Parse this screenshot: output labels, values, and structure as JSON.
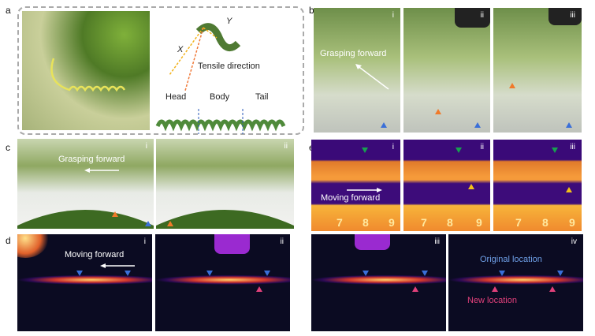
{
  "panels": {
    "a": {
      "label": "a",
      "axis_x": "X",
      "axis_y": "Y",
      "tensile": "Tensile direction",
      "head": "Head",
      "body": "Body",
      "tail": "Tail"
    },
    "b": {
      "label": "b",
      "subs": [
        "i",
        "ii",
        "iii"
      ],
      "annotation": "Grasping forward"
    },
    "c": {
      "label": "c",
      "subs": [
        "i",
        "ii"
      ],
      "annotation": "Grasping forward"
    },
    "d": {
      "label": "d",
      "subs": [
        "i",
        "ii",
        "iii",
        "iv"
      ],
      "annotation": "Moving forward",
      "original": "Original location",
      "new": "New location"
    },
    "e": {
      "label": "e",
      "subs": [
        "i",
        "ii",
        "iii"
      ],
      "annotation": "Moving forward",
      "ruler": [
        "7",
        "8",
        "9"
      ]
    }
  },
  "colors": {
    "blue_marker": "#3a6fd8",
    "orange_marker": "#f07a2a",
    "green_marker": "#18a050",
    "yellow_marker": "#f2c21a",
    "pink_marker": "#e0407a",
    "original_text": "#6fa0e8",
    "new_text": "#e0407a"
  }
}
